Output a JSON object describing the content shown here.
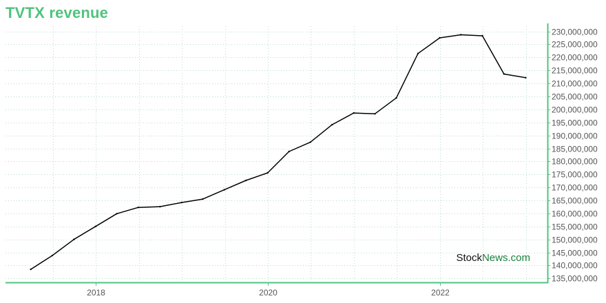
{
  "colors": {
    "title": "#4fc37d",
    "axis": "#4fc37d",
    "grid": "#b9dcc6",
    "line": "#000000",
    "watermark_dark": "#111111",
    "watermark_accent": "#1a7f3c"
  },
  "watermark": {
    "part1": "Stock",
    "part2": "News",
    "part3": ".com"
  },
  "chart_data": {
    "type": "line",
    "title": "TVTX revenue",
    "xlabel": "",
    "ylabel": "",
    "x_ticks": [
      "2018",
      "2020",
      "2022"
    ],
    "y_ticks": [
      135000000,
      140000000,
      145000000,
      150000000,
      155000000,
      160000000,
      165000000,
      170000000,
      175000000,
      180000000,
      185000000,
      190000000,
      195000000,
      200000000,
      205000000,
      210000000,
      215000000,
      220000000,
      225000000,
      230000000
    ],
    "ylim": [
      133500000,
      232000000
    ],
    "grid": true,
    "y_axis_position": "right",
    "series": [
      {
        "x": [
          "2017-03-31",
          "2017-06-30",
          "2017-09-30",
          "2017-12-31",
          "2018-03-31",
          "2018-06-30",
          "2018-09-30",
          "2018-12-31",
          "2019-03-31",
          "2019-06-30",
          "2019-09-30",
          "2019-12-31",
          "2020-03-31",
          "2020-06-30",
          "2020-09-30",
          "2020-12-31",
          "2021-03-31",
          "2021-06-30",
          "2021-09-30",
          "2021-12-31",
          "2022-03-31",
          "2022-06-30",
          "2022-09-30",
          "2022-12-31"
        ],
        "values": [
          138500000,
          143800000,
          150000000,
          155000000,
          159900000,
          162300000,
          162600000,
          164200000,
          165500000,
          169100000,
          172700000,
          175600000,
          183800000,
          187400000,
          194100000,
          198600000,
          198300000,
          204400000,
          221500000,
          227500000,
          228700000,
          228300000,
          213600000,
          212200000
        ]
      }
    ]
  }
}
